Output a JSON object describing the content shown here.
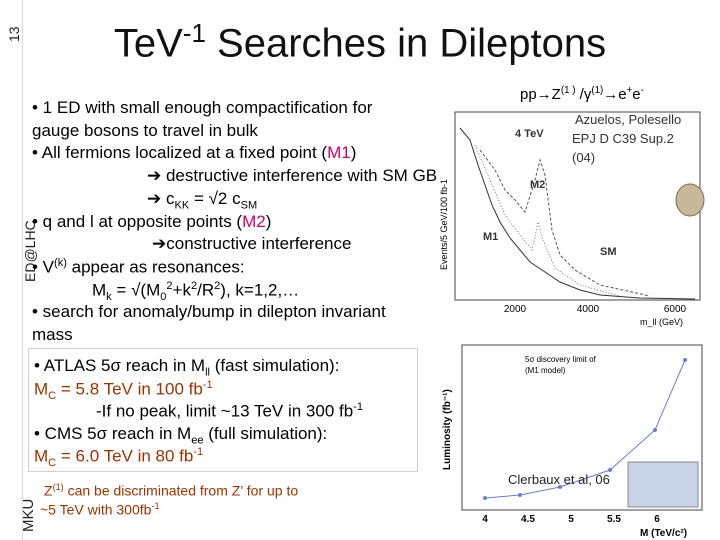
{
  "page_number": "13",
  "side_labels": {
    "top": "ED@LHC",
    "bottom": "MKU"
  },
  "title": [
    {
      "text": "TeV"
    },
    {
      "text": "-1",
      "pos": "sup"
    },
    {
      "text": " Searches in Dileptons"
    }
  ],
  "top_text": {
    "lines": [
      [
        {
          "text": "• 1 ED with small enough compactification for"
        }
      ],
      [
        {
          "text": "gauge bosons to travel in bulk"
        }
      ],
      [
        {
          "text": "• All fermions localized at a fixed point ("
        },
        {
          "text": "M1",
          "color": "#cc0066"
        },
        {
          "text": ")"
        }
      ],
      [
        {
          "text": "➔ destructive interference with SM GB"
        }
      ],
      [
        {
          "text": "➔ c"
        },
        {
          "text": "KK",
          "pos": "sub"
        },
        {
          "text": " = √2 c"
        },
        {
          "text": "SM",
          "pos": "sub"
        }
      ],
      [
        {
          "text": "• q and l at opposite points ("
        },
        {
          "text": "M2",
          "color": "#cc0066"
        },
        {
          "text": ")"
        }
      ],
      [
        {
          "text": "➔constructive interference"
        }
      ],
      [
        {
          "text": "• V"
        },
        {
          "text": "(k)",
          "pos": "sup"
        },
        {
          "text": " appear as resonances:"
        }
      ],
      [
        {
          "text": "M"
        },
        {
          "text": "k",
          "pos": "sub"
        },
        {
          "text": " = √(M"
        },
        {
          "text": "0",
          "pos": "sub"
        },
        {
          "text": "2",
          "pos": "sup"
        },
        {
          "text": "+k"
        },
        {
          "text": "2",
          "pos": "sup"
        },
        {
          "text": "/R"
        },
        {
          "text": "2",
          "pos": "sup"
        },
        {
          "text": "), k=1,2,…"
        }
      ],
      [
        {
          "text": "• search for anomaly/bump in dilepton invariant"
        }
      ],
      [
        {
          "text": "mass"
        }
      ]
    ]
  },
  "bottom_text": {
    "lines": [
      [
        {
          "text": "• ATLAS 5σ reach in M"
        },
        {
          "text": "ll",
          "pos": "sub"
        },
        {
          "text": " (fast simulation):"
        }
      ],
      [
        {
          "text": "M",
          "color": "#993300"
        },
        {
          "text": "C",
          "pos": "sub",
          "color": "#993300"
        },
        {
          "text": " = 5.8 TeV  in 100 fb",
          "color": "#993300"
        },
        {
          "text": "-1",
          "pos": "sup",
          "color": "#993300"
        }
      ],
      [
        {
          "text": "-If no peak, limit ~13 TeV in 300 fb"
        },
        {
          "text": "-1",
          "pos": "sup"
        }
      ],
      [
        {
          "text": "• CMS 5σ reach in M"
        },
        {
          "text": "ee",
          "pos": "sub"
        },
        {
          "text": " (full simulation):"
        }
      ],
      [
        {
          "text": "M",
          "color": "#993300"
        },
        {
          "text": "C",
          "pos": "sub",
          "color": "#993300"
        },
        {
          "text": " = 6.0 TeV  in 80 fb",
          "color": "#993300"
        },
        {
          "text": "-1",
          "pos": "sup",
          "color": "#993300"
        }
      ]
    ]
  },
  "note": {
    "lines": [
      [
        {
          "text": "Z"
        },
        {
          "text": "(1)",
          "pos": "sup"
        },
        {
          "text": " can be discriminated from Z’ for up to"
        }
      ],
      [
        {
          "text": "~5 TeV with 300fb"
        },
        {
          "text": "-1",
          "pos": "sup"
        }
      ]
    ]
  },
  "process": {
    "lines": [
      [
        {
          "text": "pp→Z"
        },
        {
          "text": "(1 )",
          "pos": "sup"
        },
        {
          "text": " /γ"
        },
        {
          "text": "(1)",
          "pos": "sup"
        },
        {
          "text": "→e"
        },
        {
          "text": "+",
          "pos": "sup"
        },
        {
          "text": "e"
        },
        {
          "text": "-",
          "pos": "sup"
        }
      ]
    ]
  },
  "citation_top": [
    "Azuelos, Polesello",
    "EPJ D C39 Sup.2",
    "(04)"
  ],
  "plot1": {
    "labels": [
      "4 TeV",
      "M2",
      "M1",
      "SM"
    ],
    "xticks": [
      "2000",
      "4000",
      "6000"
    ],
    "xlabel": "m_ll (GeV)",
    "ylabel": "Events/5 GeV/100 fb-1"
  },
  "plot2": {
    "legend": [
      "5σ discovery limit of",
      "(M1 model)"
    ],
    "xticks": [
      "4",
      "4.5",
      "5",
      "5.5",
      "6"
    ],
    "xlabel": "M (TeV/c²)",
    "ylabel": "Luminosity (fb⁻¹)"
  },
  "citation_bottom": "Clerbaux et al, 06"
}
